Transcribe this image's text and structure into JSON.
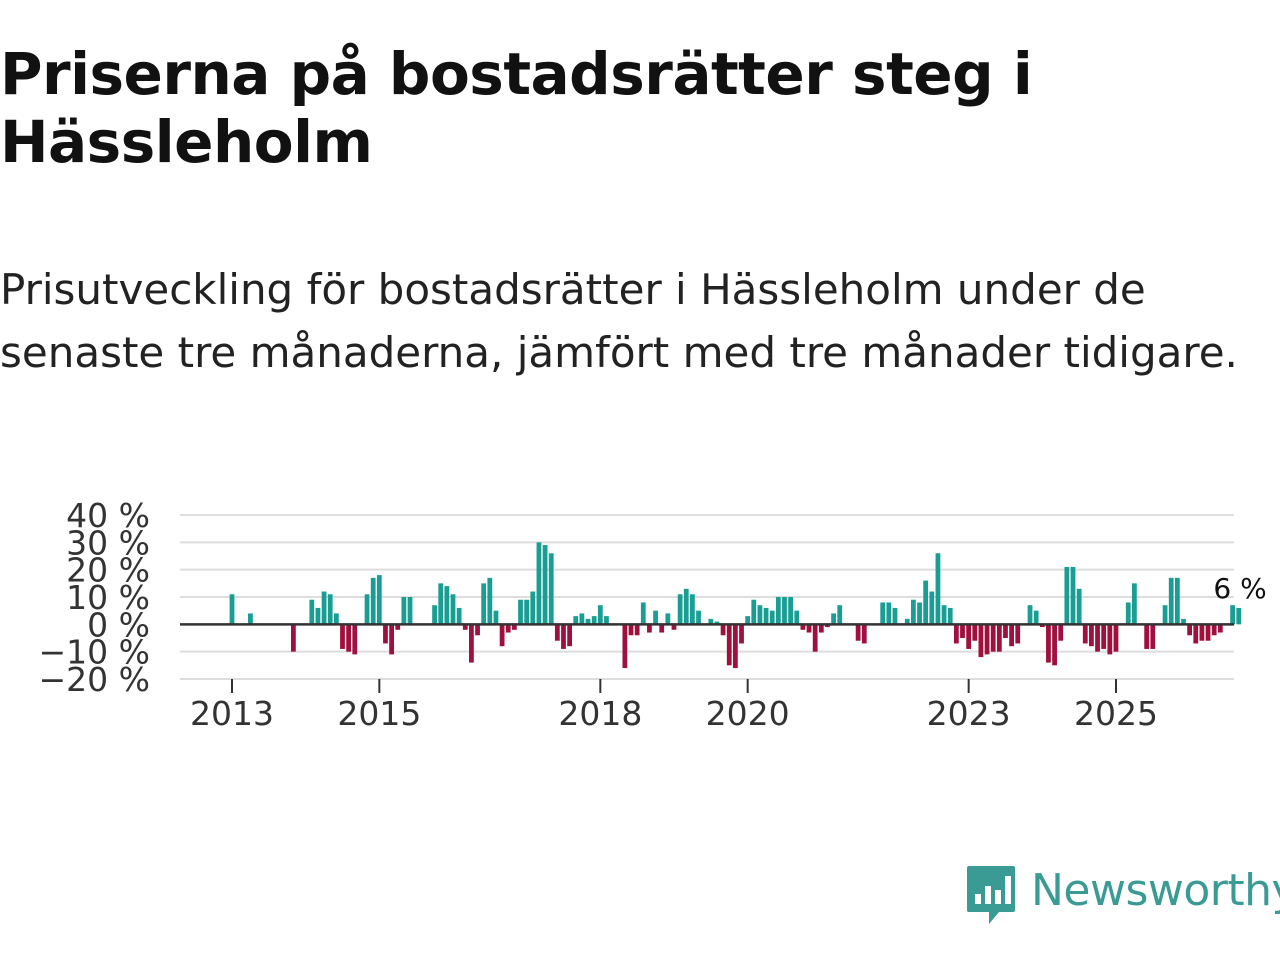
{
  "title": "Priserna på bostadsrätter steg i Hässleholm",
  "subtitle": "Prisutveckling för bostadsrätter i Hässleholm under de senaste tre månaderna, jämfört med tre månader tidigare.",
  "logo": {
    "text": "Newsworthy",
    "color": "#3a9a94"
  },
  "colors": {
    "positive": "#1a9e94",
    "negative": "#a0103f",
    "grid": "#dddddd",
    "baseline": "#333333"
  },
  "chart_data": {
    "type": "bar",
    "title": "Priserna på bostadsrätter steg i Hässleholm",
    "xlabel": "",
    "ylabel": "",
    "ylim": [
      -20,
      40
    ],
    "yticks": [
      40,
      30,
      20,
      10,
      0,
      -10,
      -20
    ],
    "ytick_labels": [
      "40 %",
      "30 %",
      "20 %",
      "10 %",
      "0 %",
      "−10 %",
      "−20 %"
    ],
    "xticks": [
      {
        "label": "2013",
        "t": 2013.0
      },
      {
        "label": "2015",
        "t": 2015.0
      },
      {
        "label": "2018",
        "t": 2018.0
      },
      {
        "label": "2020",
        "t": 2020.0
      },
      {
        "label": "2023",
        "t": 2023.0
      },
      {
        "label": "2025",
        "t": 2025.0
      }
    ],
    "annotation": {
      "text": "6 %",
      "value": 6
    },
    "series": [
      {
        "name": "Prisutveckling",
        "start": 2013.0,
        "step": 0.08333,
        "values": [
          11,
          0,
          0,
          4,
          0,
          0,
          0,
          0,
          0,
          0,
          -10,
          0,
          0,
          9,
          6,
          12,
          11,
          4,
          -9,
          -10,
          -11,
          0,
          11,
          17,
          18,
          -7,
          -11,
          -2,
          10,
          10,
          0,
          0,
          0,
          7,
          15,
          14,
          11,
          6,
          -2,
          -14,
          -4,
          15,
          17,
          5,
          -8,
          -3,
          -2,
          9,
          9,
          12,
          30,
          29,
          26,
          -6,
          -9,
          -8,
          3,
          4,
          2,
          3,
          7,
          3,
          0,
          0,
          -16,
          -4,
          -4,
          8,
          -3,
          5,
          -3,
          4,
          -2,
          11,
          13,
          11,
          5,
          0,
          2,
          1,
          -4,
          -15,
          -16,
          -7,
          3,
          9,
          7,
          6,
          5,
          10,
          10,
          10,
          5,
          -2,
          -3,
          -10,
          -3,
          -1,
          4,
          7,
          0,
          0,
          -6,
          -7,
          0,
          0,
          8,
          8,
          6,
          0,
          2,
          9,
          8,
          16,
          12,
          26,
          7,
          6,
          -7,
          -5,
          -9,
          -6,
          -12,
          -11,
          -10,
          -10,
          -5,
          -8,
          -7,
          0,
          7,
          5,
          -1,
          -14,
          -15,
          -6,
          21,
          21,
          13,
          -7,
          -8,
          -10,
          -9,
          -11,
          -10,
          0,
          8,
          15,
          0,
          -9,
          -9,
          0,
          7,
          17,
          17,
          2,
          -4,
          -7,
          -6,
          -6,
          -4,
          -3,
          0,
          7,
          6
        ]
      }
    ]
  }
}
